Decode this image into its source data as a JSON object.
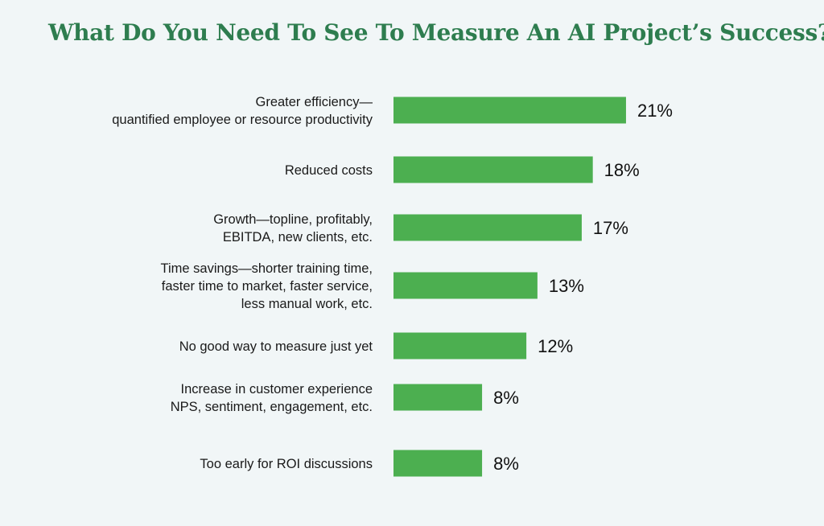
{
  "title": "What Do You Need To See To Measure An AI Project’s Success?",
  "colors": {
    "background": "#f1f6f7",
    "title": "#2e7d4f",
    "bar": "#4caf50"
  },
  "chart_data": {
    "type": "bar",
    "orientation": "horizontal",
    "title": "What Do You Need To See To Measure An AI Project’s Success?",
    "xlabel": "",
    "ylabel": "",
    "unit": "%",
    "categories": [
      [
        "Greater efficiency—",
        "quantified employee or resource productivity"
      ],
      [
        "Reduced costs"
      ],
      [
        "Growth—topline, profitably,",
        "EBITDA, new clients, etc."
      ],
      [
        "Time savings—shorter training time,",
        "faster time to market, faster service,",
        "less manual work, etc."
      ],
      [
        "No good way to measure just yet"
      ],
      [
        "Increase in customer experience",
        "NPS, sentiment, engagement, etc."
      ],
      [
        "Too early for ROI discussions"
      ]
    ],
    "values": [
      21,
      18,
      17,
      13,
      12,
      8,
      8
    ],
    "value_labels": [
      "21%",
      "18%",
      "17%",
      "13%",
      "12%",
      "8%",
      "8%"
    ],
    "grid": false,
    "legend": "none"
  }
}
